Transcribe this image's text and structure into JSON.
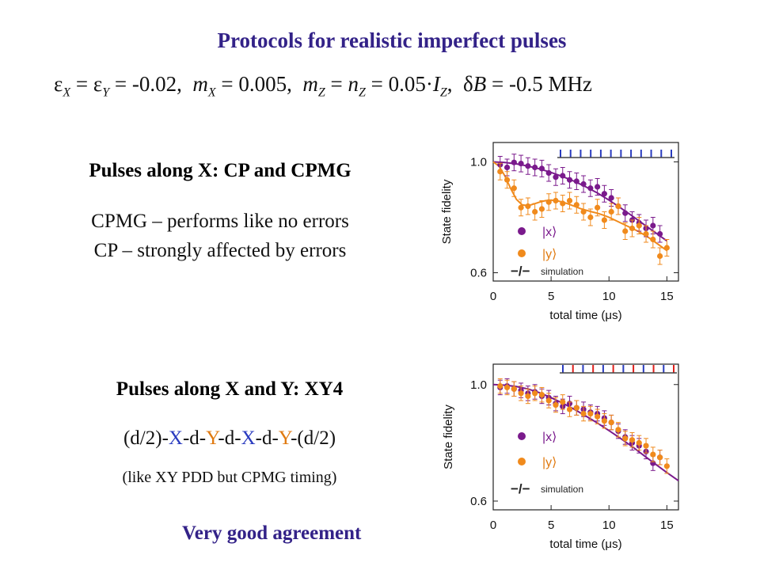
{
  "slide": {
    "title": "Protocols for realistic imperfect pulses",
    "params": {
      "eps_x": "X",
      "eps_y": "Y",
      "eps_val": " = -0.02, ",
      "m_x": "X",
      "m_x_val": " = 0.005, ",
      "m_z": "Z",
      "n_z": "Z",
      "I_z": "Z",
      "mz_val_prefix": " = 0.05·",
      "mz_val_suffix": ", ",
      "dB": "δ",
      "dB_val": " = -0.5 MHz"
    },
    "section1": {
      "heading": "Pulses along X: CP and CPMG",
      "line1": "CPMG – performs like no errors",
      "line2": "CP – strongly affected by errors"
    },
    "section2": {
      "heading": "Pulses along X and Y: XY4",
      "seq": [
        "(d/2)-",
        "X",
        "-d-",
        "Y",
        "-d-",
        "X",
        "-d-",
        "Y",
        "-(d/2)"
      ],
      "note": "(like XY PDD but CPMG timing)"
    },
    "conclusion": "Very good agreement"
  },
  "colors": {
    "title": "#332288",
    "purple": "#7a1a8c",
    "orange": "#f08a1c",
    "pulse_blue": "#2a3bbf",
    "pulse_red": "#e0201c"
  },
  "chart_data": [
    {
      "type": "scatter",
      "ylabel": "State fidelity",
      "xlabel": "total time (μs)",
      "xticks": [
        "0",
        "5",
        "10",
        "15"
      ],
      "yticks": [
        "0.6",
        "1.0"
      ],
      "xlim": [
        0,
        16
      ],
      "ylim": [
        0.57,
        1.07
      ],
      "legend": {
        "purple_label": "|x⟩",
        "orange_label": "|y⟩",
        "sim_symbol": "−/−",
        "sim_label": "simulation"
      },
      "pulses": {
        "count": 12,
        "colors": [
          "blue",
          "blue",
          "blue",
          "blue",
          "blue",
          "blue",
          "blue",
          "blue",
          "blue",
          "blue",
          "blue",
          "blue"
        ]
      },
      "series": [
        {
          "color": "purple",
          "x": [
            0.6,
            1.2,
            1.8,
            2.4,
            3.0,
            3.6,
            4.2,
            4.8,
            5.4,
            6.0,
            6.6,
            7.2,
            7.8,
            8.4,
            9.0,
            9.6,
            10.2,
            10.8,
            11.4,
            12.0,
            12.6,
            13.2,
            13.8,
            14.4
          ],
          "y": [
            0.99,
            0.98,
            0.998,
            0.994,
            0.985,
            0.98,
            0.976,
            0.96,
            0.945,
            0.95,
            0.935,
            0.93,
            0.92,
            0.905,
            0.91,
            0.885,
            0.87,
            0.84,
            0.815,
            0.79,
            0.78,
            0.76,
            0.77,
            0.74
          ],
          "yerr": 0.03
        },
        {
          "color": "orange",
          "x": [
            0.6,
            1.2,
            1.8,
            2.4,
            3.0,
            3.6,
            4.2,
            4.8,
            5.4,
            6.0,
            6.6,
            7.2,
            7.8,
            8.4,
            9.0,
            9.6,
            10.2,
            10.8,
            11.4,
            12.0,
            12.6,
            13.2,
            13.8,
            14.4,
            15.0
          ],
          "y": [
            0.965,
            0.935,
            0.905,
            0.835,
            0.84,
            0.82,
            0.83,
            0.855,
            0.86,
            0.85,
            0.86,
            0.845,
            0.82,
            0.8,
            0.835,
            0.79,
            0.82,
            0.84,
            0.75,
            0.76,
            0.77,
            0.74,
            0.72,
            0.66,
            0.69
          ],
          "yerr": 0.03
        }
      ],
      "simulation": [
        {
          "color": "purple",
          "x": [
            0,
            1,
            2,
            3,
            4,
            5,
            6,
            7,
            8,
            9,
            10,
            11,
            12,
            13,
            14,
            15
          ],
          "y": [
            1.0,
            0.998,
            0.993,
            0.985,
            0.975,
            0.962,
            0.947,
            0.93,
            0.91,
            0.888,
            0.862,
            0.834,
            0.805,
            0.775,
            0.745,
            0.715
          ]
        },
        {
          "color": "orange",
          "x": [
            0,
            0.5,
            1,
            1.5,
            2,
            2.5,
            3,
            3.5,
            4,
            4.5,
            5,
            5.5,
            6,
            6.5,
            7,
            7.5,
            8,
            8.5,
            9,
            9.5,
            10,
            10.5,
            11,
            11.5,
            12,
            12.5,
            13,
            13.5,
            14,
            14.5,
            15
          ],
          "y": [
            1.0,
            0.985,
            0.95,
            0.905,
            0.865,
            0.845,
            0.842,
            0.848,
            0.855,
            0.86,
            0.862,
            0.86,
            0.855,
            0.848,
            0.84,
            0.832,
            0.826,
            0.82,
            0.815,
            0.808,
            0.8,
            0.79,
            0.78,
            0.77,
            0.76,
            0.75,
            0.738,
            0.725,
            0.71,
            0.695,
            0.68
          ]
        }
      ]
    },
    {
      "type": "scatter",
      "ylabel": "State fidelity",
      "xlabel": "total time (μs)",
      "xticks": [
        "0",
        "5",
        "10",
        "15"
      ],
      "yticks": [
        "0.6",
        "1.0"
      ],
      "xlim": [
        0,
        16
      ],
      "ylim": [
        0.57,
        1.07
      ],
      "legend": {
        "purple_label": "|x⟩",
        "orange_label": "|y⟩",
        "sim_symbol": "−/−",
        "sim_label": "simulation"
      },
      "pulses": {
        "count": 12,
        "colors": [
          "blue",
          "red",
          "blue",
          "red",
          "blue",
          "red",
          "blue",
          "red",
          "blue",
          "red",
          "blue",
          "red"
        ]
      },
      "series": [
        {
          "color": "purple",
          "x": [
            0.6,
            1.2,
            1.8,
            2.4,
            3.0,
            3.6,
            4.2,
            4.8,
            5.4,
            6.0,
            6.6,
            7.2,
            7.8,
            8.4,
            9.0,
            9.6,
            10.2,
            10.8,
            11.4,
            12.0,
            12.6,
            13.2,
            13.8,
            14.4
          ],
          "y": [
            0.99,
            0.995,
            0.985,
            0.98,
            0.97,
            0.975,
            0.96,
            0.955,
            0.935,
            0.925,
            0.935,
            0.92,
            0.915,
            0.905,
            0.9,
            0.885,
            0.87,
            0.84,
            0.82,
            0.8,
            0.79,
            0.77,
            0.73,
            0.75
          ],
          "yerr": 0.025
        },
        {
          "color": "orange",
          "x": [
            0.6,
            1.2,
            1.8,
            2.4,
            3.0,
            3.6,
            4.2,
            4.8,
            5.4,
            6.0,
            6.6,
            7.2,
            7.8,
            8.4,
            9.0,
            9.6,
            10.2,
            10.8,
            11.4,
            12.0,
            12.6,
            13.2,
            13.8,
            14.4,
            15.0
          ],
          "y": [
            0.995,
            0.99,
            0.985,
            0.97,
            0.96,
            0.97,
            0.965,
            0.945,
            0.93,
            0.94,
            0.915,
            0.92,
            0.9,
            0.9,
            0.89,
            0.875,
            0.87,
            0.845,
            0.815,
            0.81,
            0.8,
            0.79,
            0.76,
            0.75,
            0.72
          ],
          "yerr": 0.025
        }
      ],
      "simulation": [
        {
          "color": "purple",
          "x": [
            0,
            1,
            2,
            3,
            4,
            5,
            6,
            7,
            8,
            9,
            10,
            11,
            12,
            13,
            14,
            15,
            16
          ],
          "y": [
            1.0,
            0.998,
            0.993,
            0.985,
            0.972,
            0.955,
            0.936,
            0.915,
            0.892,
            0.868,
            0.842,
            0.815,
            0.787,
            0.757,
            0.727,
            0.698,
            0.67
          ]
        }
      ]
    }
  ]
}
